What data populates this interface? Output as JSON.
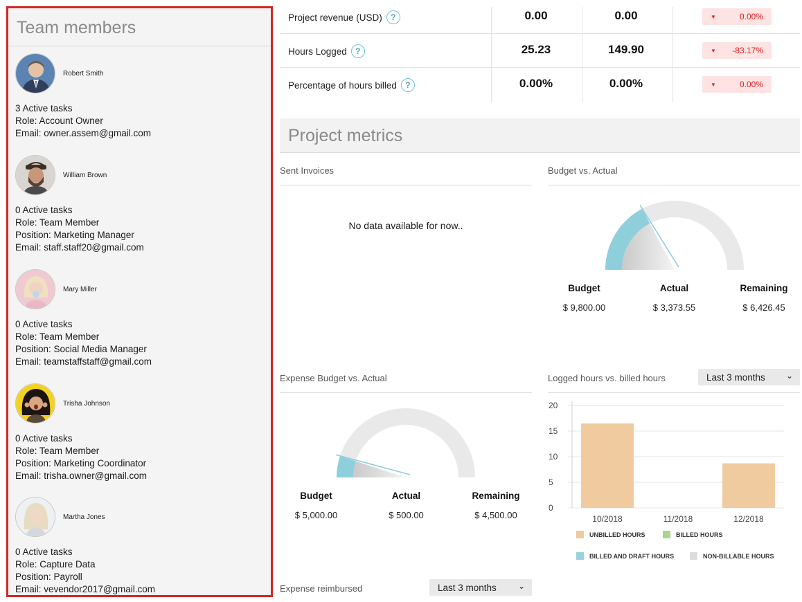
{
  "team": {
    "title": "Team members",
    "members": [
      {
        "name": "Robert Smith",
        "lines": [
          "3 Active tasks",
          "Role: Account Owner",
          "Email: owner.assem@gmail.com"
        ]
      },
      {
        "name": "William Brown",
        "lines": [
          "0 Active tasks",
          "Role: Team Member",
          "Position: Marketing Manager",
          "Email: staff.staff20@gmail.com"
        ]
      },
      {
        "name": "Mary Miller",
        "lines": [
          "0 Active tasks",
          "Role: Team Member",
          "Position: Social Media Manager",
          "Email: teamstaffstaff@gmail.com"
        ]
      },
      {
        "name": "Trisha Johnson",
        "lines": [
          "0 Active tasks",
          "Role: Team Member",
          "Position: Marketing Coordinator",
          "Email: trisha.owner@gmail.com"
        ]
      },
      {
        "name": "Martha Jones",
        "lines": [
          "0 Active tasks",
          "Role: Capture Data",
          "Position: Payroll",
          "Email: vevendor2017@gmail.com"
        ]
      }
    ]
  },
  "stats": {
    "help_glyph": "?",
    "delta_glyph": "▼",
    "rows": [
      {
        "label": "Project revenue (USD)",
        "v1": "0.00",
        "v2": "0.00",
        "delta": "0.00%"
      },
      {
        "label": "Hours Logged",
        "v1": "25.23",
        "v2": "149.90",
        "delta": "-83.17%"
      },
      {
        "label": "Percentage of hours billed",
        "v1": "0.00%",
        "v2": "0.00%",
        "delta": "0.00%"
      }
    ]
  },
  "metrics": {
    "title": "Project metrics",
    "sent_invoices": {
      "title": "Sent Invoices",
      "empty": "No data available for now.."
    },
    "budget_vs_actual": {
      "title": "Budget vs. Actual",
      "budget_label": "Budget",
      "actual_label": "Actual",
      "remaining_label": "Remaining",
      "budget": "$ 9,800.00",
      "actual": "$ 3,373.55",
      "remaining": "$ 6,426.45",
      "fraction": 0.344
    },
    "expense_budget": {
      "title": "Expense Budget vs. Actual",
      "budget_label": "Budget",
      "actual_label": "Actual",
      "remaining_label": "Remaining",
      "budget": "$ 5,000.00",
      "actual": "$ 500.00",
      "remaining": "$ 4,500.00",
      "fraction": 0.1
    },
    "logged_hours": {
      "title": "Logged hours vs. billed hours",
      "range": "Last 3 months"
    },
    "expense_reimbursed": {
      "title": "Expense reimbursed",
      "range": "Last 3 months"
    }
  },
  "colors": {
    "unbilled": "#efcb9f",
    "billed": "#a9d68a",
    "billed_draft": "#9dd0de",
    "non_billable": "#dcdcdc",
    "gauge": "#8fcfdc",
    "delta_red": "#e02020"
  },
  "chart_data": {
    "type": "bar",
    "categories": [
      "10/2018",
      "11/2018",
      "12/2018"
    ],
    "series": [
      {
        "name": "UNBILLED HOURS",
        "values": [
          16.5,
          0,
          8.7
        ]
      },
      {
        "name": "BILLED HOURS",
        "values": [
          0,
          0,
          0
        ]
      },
      {
        "name": "BILLED AND DRAFT HOURS",
        "values": [
          0,
          0,
          0
        ]
      },
      {
        "name": "NON-BILLABLE HOURS",
        "values": [
          0,
          0,
          0
        ]
      }
    ],
    "y_ticks": [
      "0",
      "5",
      "10",
      "15",
      "20"
    ],
    "ylim": [
      0,
      20
    ],
    "grid": true,
    "legend": "bottom"
  }
}
